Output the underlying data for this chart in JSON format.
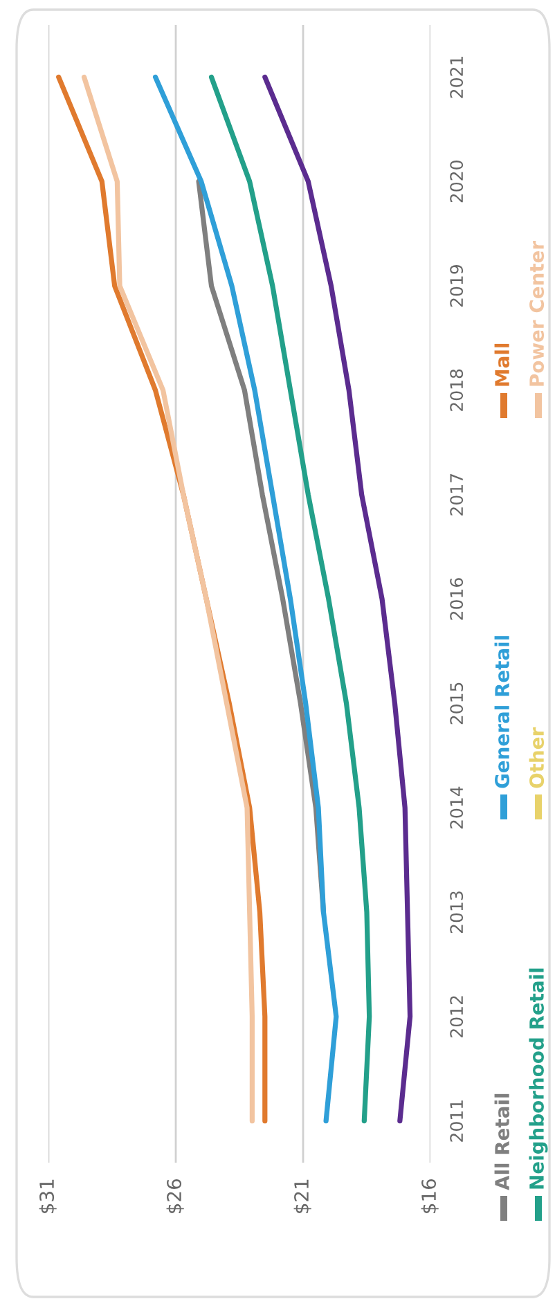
{
  "chart_data": {
    "type": "line",
    "x": [
      2011,
      2012,
      2013,
      2014,
      2015,
      2016,
      2017,
      2018,
      2019,
      2020,
      2021
    ],
    "orientation": "horizontal",
    "ylim": [
      2010.6,
      2021.5
    ],
    "yticks": [
      2011,
      2012,
      2013,
      2014,
      2015,
      2016,
      2017,
      2018,
      2019,
      2020,
      2021
    ],
    "xlim": [
      31,
      16
    ],
    "xticks": [
      {
        "value": 31,
        "label": "$31"
      },
      {
        "value": 26,
        "label": "$26"
      },
      {
        "value": 21,
        "label": "$21"
      },
      {
        "value": 16,
        "label": "$16"
      }
    ],
    "grid": "x",
    "legend": "right",
    "marker": "none",
    "line_style": "solid",
    "series": [
      {
        "name": "All Retail",
        "color": "#7f7f7f",
        "values": [
          null,
          null,
          20.2,
          20.5,
          21.1,
          21.8,
          22.6,
          23.3,
          24.6,
          25.1,
          null
        ]
      },
      {
        "name": "Neighborhood Retail",
        "color": "#23a08a",
        "values": [
          18.6,
          18.4,
          18.5,
          18.8,
          19.3,
          20.0,
          20.8,
          21.5,
          22.2,
          23.1,
          24.6
        ]
      },
      {
        "name": "General Retail",
        "color": "#2f9fd8",
        "values": [
          20.1,
          19.7,
          20.2,
          20.4,
          20.9,
          21.5,
          22.2,
          22.9,
          23.8,
          25.0,
          26.8
        ]
      },
      {
        "name": "Other",
        "color": "#e8d26a",
        "values": [
          null,
          null,
          null,
          null,
          null,
          null,
          null,
          null,
          null,
          null,
          null
        ]
      },
      {
        "name": "Mall",
        "color": "#e07a2e",
        "values": [
          22.5,
          22.5,
          22.7,
          23.1,
          23.9,
          24.8,
          25.7,
          26.8,
          28.4,
          28.9,
          30.6
        ]
      },
      {
        "name": "Power Center",
        "color": "#f2c4a0",
        "values": [
          23.0,
          23.0,
          23.1,
          23.2,
          24.0,
          24.8,
          25.7,
          26.5,
          28.2,
          28.3,
          29.6
        ]
      },
      {
        "color": "#5b2c8f",
        "values": [
          17.2,
          16.8,
          16.9,
          17.0,
          17.4,
          17.9,
          18.7,
          19.2,
          19.9,
          20.8,
          22.5
        ]
      }
    ]
  }
}
